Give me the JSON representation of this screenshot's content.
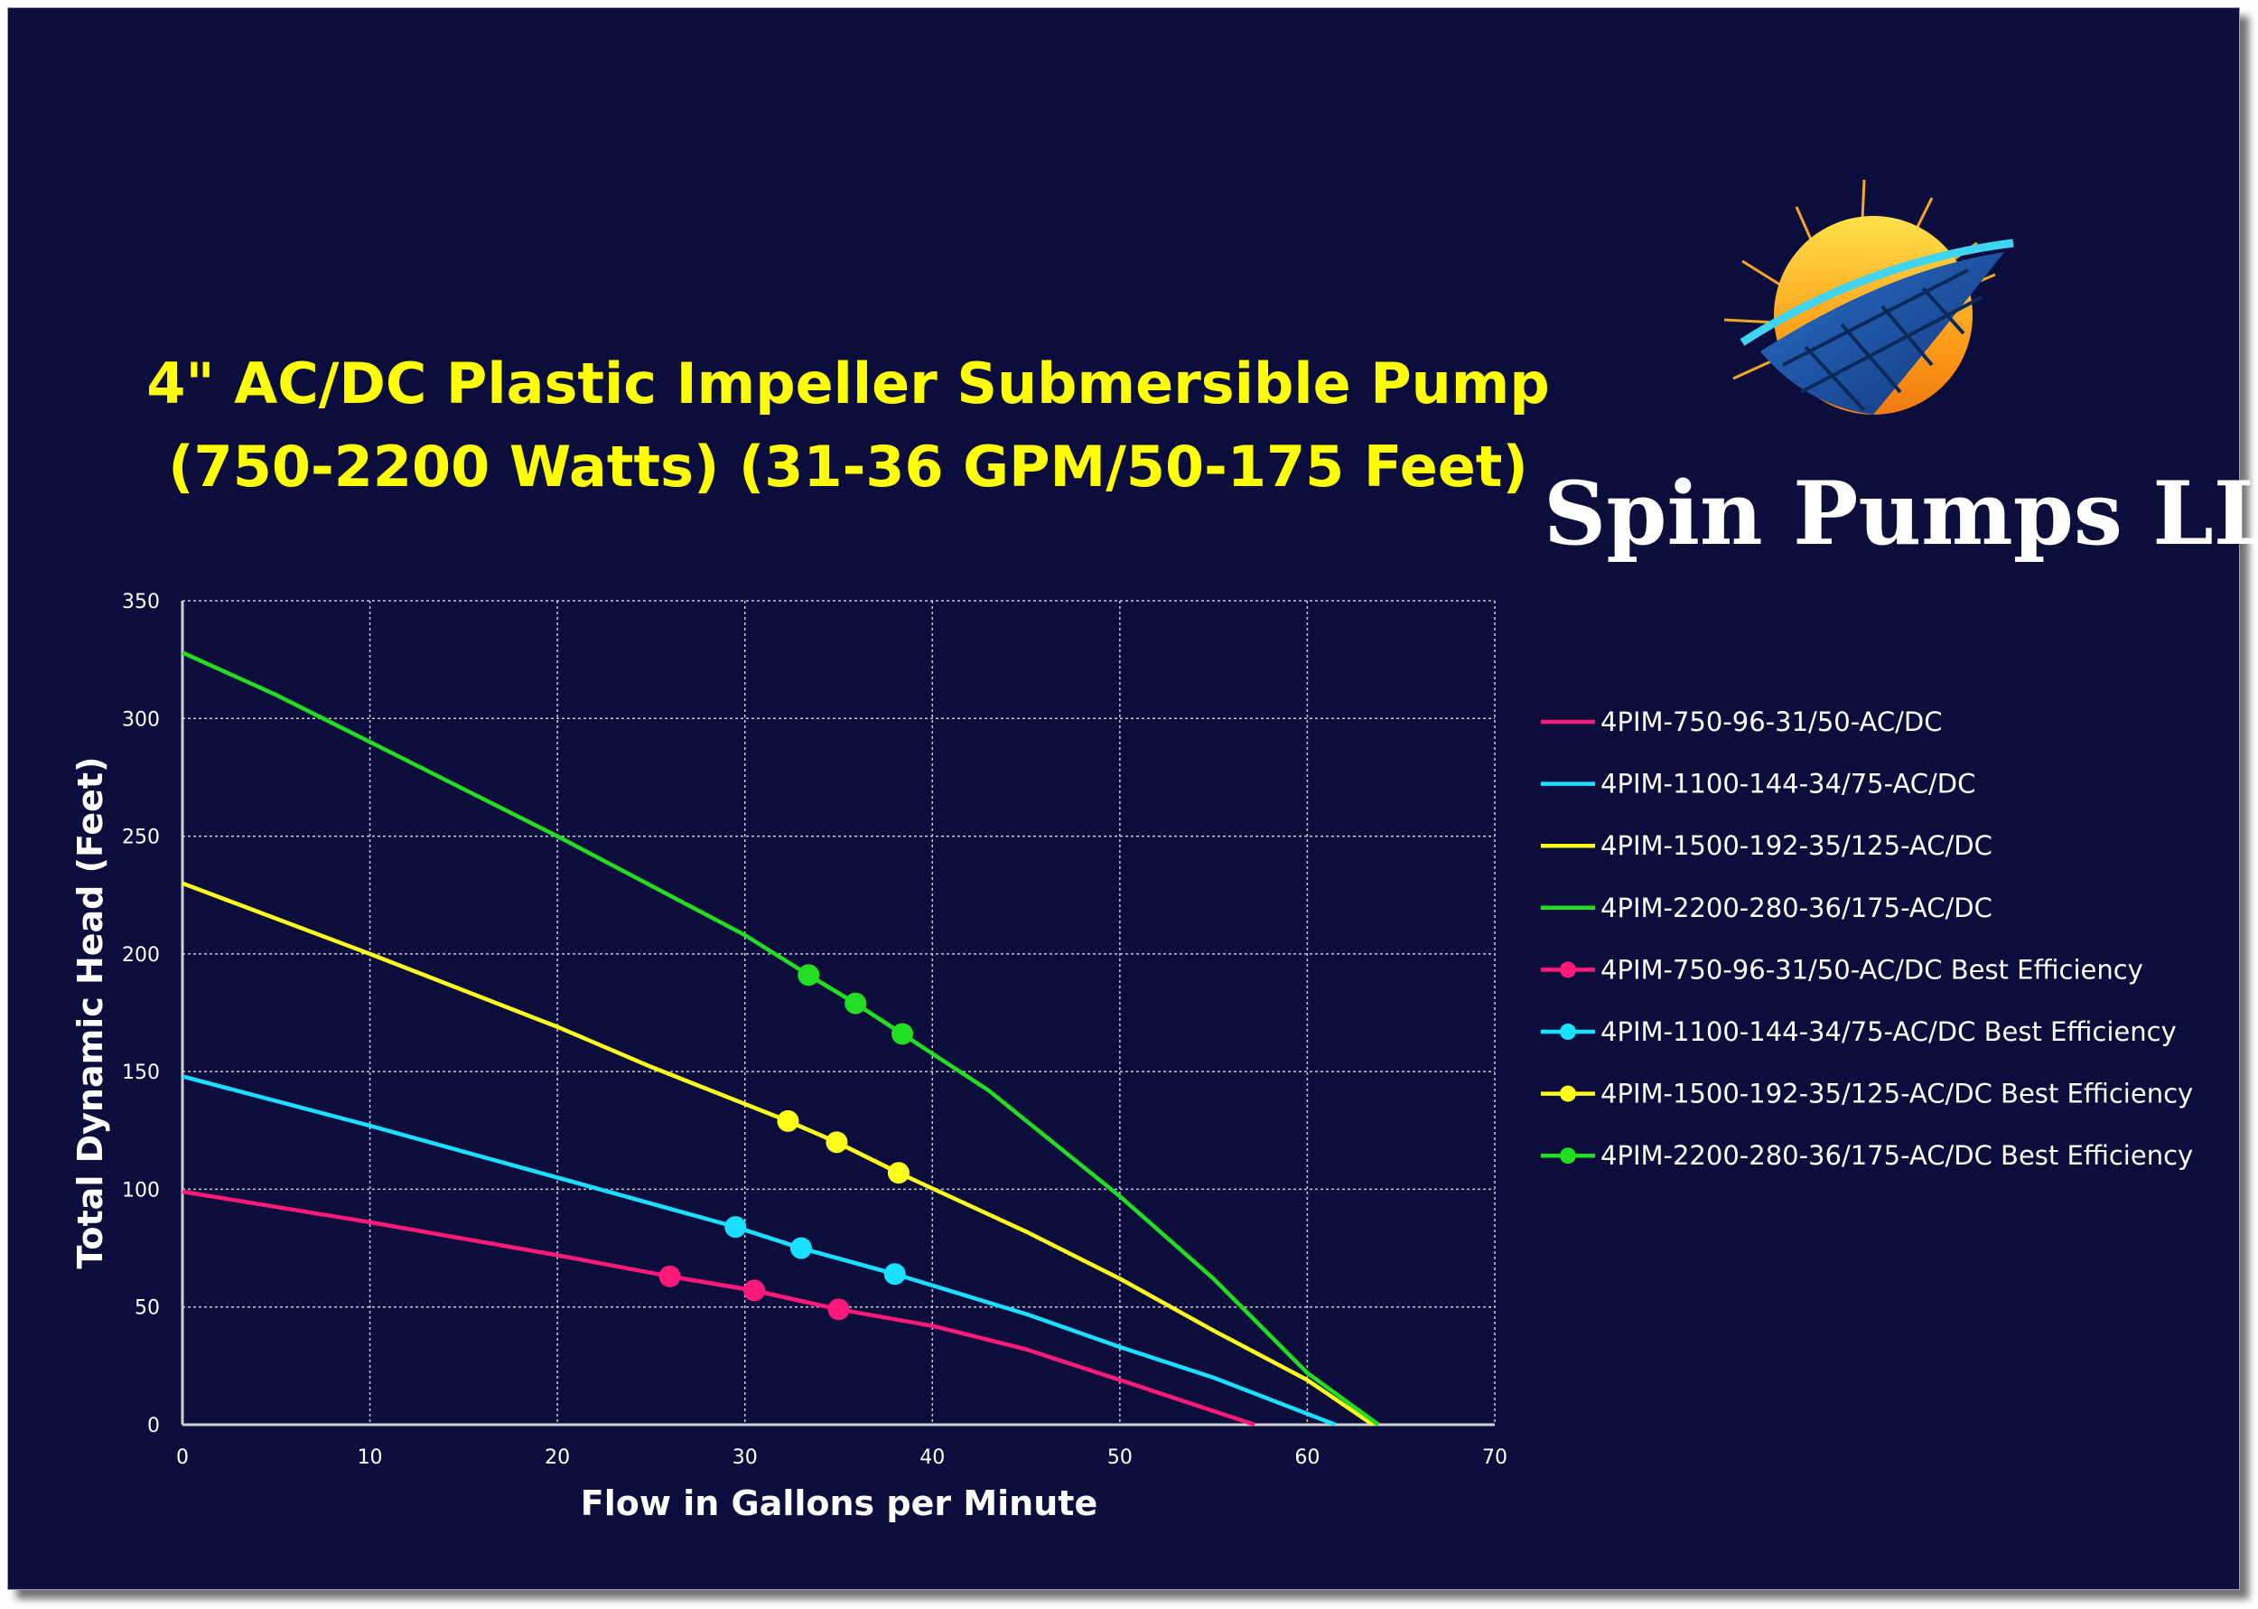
{
  "title": {
    "line1": "4\" AC/DC Plastic Impeller Submersible Pump",
    "line2": "(750-2200 Watts) (31-36 GPM/50-175 Feet)"
  },
  "logo": {
    "company_name": "Spin Pumps LLC",
    "icon": "sun-and-solar-panel-logo"
  },
  "colors": {
    "background": "#0b0d3d",
    "title": "#ffff00",
    "grid": "#c8c8d8",
    "axis": "#d0d0d0"
  },
  "chart_data": {
    "type": "line",
    "xlabel": "Flow in Gallons per Minute",
    "ylabel": "Total Dynamic Head (Feet)",
    "xlim": [
      0,
      70
    ],
    "ylim": [
      0,
      350
    ],
    "xticks": [
      0,
      10,
      20,
      30,
      40,
      50,
      60,
      70
    ],
    "yticks": [
      0,
      50,
      100,
      150,
      200,
      250,
      300,
      350
    ],
    "grid": "dotted",
    "legend_position": "right",
    "series": [
      {
        "name": "4PIM-750-96-31/50-AC/DC",
        "color": "#ff1a7a",
        "kind": "curve",
        "x": [
          0,
          10,
          20,
          26,
          30.5,
          35,
          40,
          45,
          50,
          57.2
        ],
        "y": [
          99,
          86,
          72,
          63,
          57,
          49,
          42,
          32,
          19,
          0
        ]
      },
      {
        "name": "4PIM-1100-144-34/75-AC/DC",
        "color": "#1ae0ff",
        "kind": "curve",
        "x": [
          0,
          10,
          20,
          29.5,
          33,
          38,
          45,
          50,
          55,
          61.5
        ],
        "y": [
          148,
          127,
          105,
          84,
          75,
          64,
          47,
          33,
          20,
          0
        ]
      },
      {
        "name": "4PIM-1500-192-35/125-AC/DC",
        "color": "#ffff1a",
        "kind": "curve",
        "x": [
          0,
          10,
          20,
          25,
          32.3,
          34.9,
          38.2,
          45,
          50,
          55,
          60,
          63.5
        ],
        "y": [
          230,
          200,
          169,
          152,
          129,
          120,
          107,
          82,
          62,
          40,
          19,
          0
        ]
      },
      {
        "name": "4PIM-2200-280-36/175-AC/DC",
        "color": "#22dd22",
        "kind": "curve",
        "x": [
          0,
          5,
          10,
          20,
          30,
          33.4,
          35.9,
          38.4,
          43,
          50,
          55,
          60,
          63.8
        ],
        "y": [
          328,
          310,
          290,
          250,
          208,
          191,
          179,
          166,
          142,
          97,
          62,
          22,
          0
        ]
      },
      {
        "name": "4PIM-750-96-31/50-AC/DC Best Efficiency",
        "color": "#ff1a7a",
        "kind": "markers",
        "x": [
          26,
          30.5,
          35
        ],
        "y": [
          63,
          57,
          49
        ]
      },
      {
        "name": "4PIM-1100-144-34/75-AC/DC Best Efficiency",
        "color": "#1ae0ff",
        "kind": "markers",
        "x": [
          29.5,
          33,
          38
        ],
        "y": [
          84,
          75,
          64
        ]
      },
      {
        "name": "4PIM-1500-192-35/125-AC/DC Best Efficiency",
        "color": "#ffff1a",
        "kind": "markers",
        "x": [
          32.3,
          34.9,
          38.2
        ],
        "y": [
          129,
          120,
          107
        ]
      },
      {
        "name": "4PIM-2200-280-36/175-AC/DC Best Efficiency",
        "color": "#22dd22",
        "kind": "markers",
        "x": [
          33.4,
          35.9,
          38.4
        ],
        "y": [
          191,
          179,
          166
        ]
      }
    ]
  }
}
